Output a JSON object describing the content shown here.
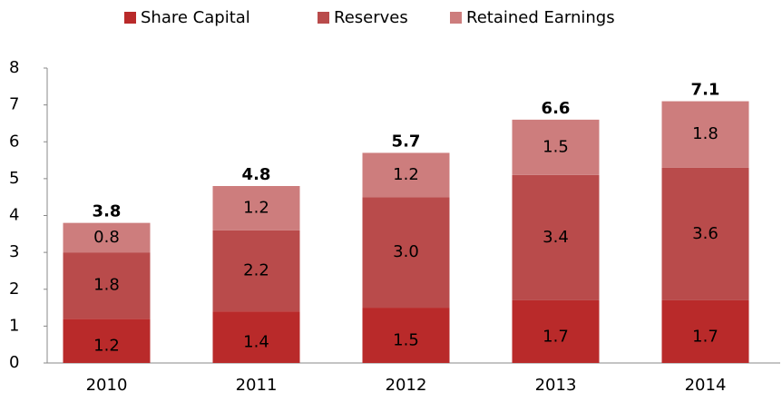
{
  "chart_data": {
    "type": "stacked_bar",
    "categories": [
      "2010",
      "2011",
      "2012",
      "2013",
      "2014"
    ],
    "series": [
      {
        "name": "Share Capital",
        "color": "#b92a2a",
        "values": [
          1.2,
          1.4,
          1.5,
          1.7,
          1.7
        ]
      },
      {
        "name": "Reserves",
        "color": "#b94b4b",
        "values": [
          1.8,
          2.2,
          3.0,
          3.4,
          3.6
        ],
        "value_labels": [
          "1.8",
          "2.2",
          "3.0",
          "3.4",
          "3.6"
        ]
      },
      {
        "name": "Retained Earnings",
        "color": "#cd7d7d",
        "values": [
          0.8,
          1.2,
          1.2,
          1.5,
          1.8
        ]
      }
    ],
    "totals": [
      3.8,
      4.8,
      5.7,
      6.6,
      7.1
    ],
    "ylim": [
      0,
      8
    ],
    "yticks": [
      0,
      1,
      2,
      3,
      4,
      5,
      6,
      7,
      8
    ],
    "grid": false,
    "legend": "top"
  }
}
